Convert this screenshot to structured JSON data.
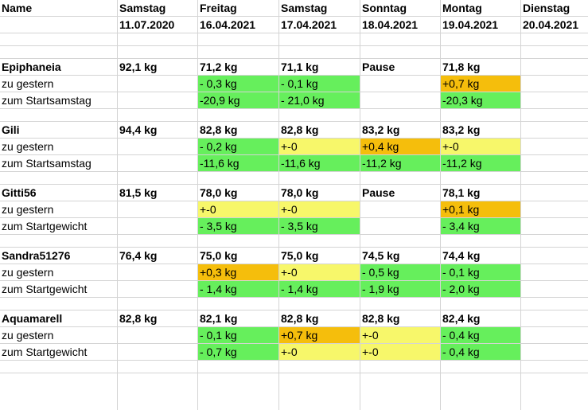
{
  "header": {
    "name_label": "Name",
    "days": [
      {
        "day": "Samstag",
        "date": "11.07.2020"
      },
      {
        "day": "Freitag",
        "date": "16.04.2021"
      },
      {
        "day": "Samstag",
        "date": "17.04.2021"
      },
      {
        "day": "Sonntag",
        "date": "18.04.2021"
      },
      {
        "day": "Montag",
        "date": "19.04.2021"
      },
      {
        "day": "Dienstag",
        "date": "20.04.2021"
      }
    ]
  },
  "people": [
    {
      "name": "Epiphaneia",
      "weights": [
        "92,1 kg",
        "71,2 kg",
        "71,1 kg",
        "Pause",
        "71,8 kg",
        ""
      ],
      "row2_label": "zu gestern",
      "row2": [
        {
          "v": "",
          "c": ""
        },
        {
          "v": "- 0,3 kg",
          "c": "green"
        },
        {
          "v": "- 0,1 kg",
          "c": "green"
        },
        {
          "v": "",
          "c": ""
        },
        {
          "v": "+0,7 kg",
          "c": "orange"
        },
        {
          "v": "",
          "c": ""
        }
      ],
      "row3_label": "zum Startsamstag",
      "row3": [
        {
          "v": "",
          "c": ""
        },
        {
          "v": "-20,9 kg",
          "c": "green"
        },
        {
          "v": "- 21,0 kg",
          "c": "green"
        },
        {
          "v": "",
          "c": ""
        },
        {
          "v": "-20,3 kg",
          "c": "green"
        },
        {
          "v": "",
          "c": ""
        }
      ]
    },
    {
      "name": "Gili",
      "weights": [
        "94,4 kg",
        "82,8 kg",
        "82,8 kg",
        "83,2 kg",
        "83,2 kg",
        ""
      ],
      "row2_label": "zu gestern",
      "row2": [
        {
          "v": "",
          "c": ""
        },
        {
          "v": "- 0,2 kg",
          "c": "green"
        },
        {
          "v": "+-0",
          "c": "yellow"
        },
        {
          "v": "+0,4 kg",
          "c": "orange"
        },
        {
          "v": "+-0",
          "c": "yellow"
        },
        {
          "v": "",
          "c": ""
        }
      ],
      "row3_label": "zum Startsamstag",
      "row3": [
        {
          "v": "",
          "c": ""
        },
        {
          "v": "-11,6 kg",
          "c": "green"
        },
        {
          "v": "-11,6 kg",
          "c": "green"
        },
        {
          "v": "-11,2 kg",
          "c": "green"
        },
        {
          "v": "-11,2 kg",
          "c": "green"
        },
        {
          "v": "",
          "c": ""
        }
      ]
    },
    {
      "name": "Gitti56",
      "weights": [
        "81,5 kg",
        "78,0 kg",
        "78,0 kg",
        "Pause",
        "78,1 kg",
        ""
      ],
      "row2_label": "zu gestern",
      "row2": [
        {
          "v": "",
          "c": ""
        },
        {
          "v": "+-0",
          "c": "yellow"
        },
        {
          "v": "+-0",
          "c": "yellow"
        },
        {
          "v": "",
          "c": ""
        },
        {
          "v": "+0,1 kg",
          "c": "orange"
        },
        {
          "v": "",
          "c": ""
        }
      ],
      "row3_label": "zum Startgewicht",
      "row3": [
        {
          "v": "",
          "c": ""
        },
        {
          "v": "- 3,5 kg",
          "c": "green"
        },
        {
          "v": "- 3,5 kg",
          "c": "green"
        },
        {
          "v": "",
          "c": ""
        },
        {
          "v": "- 3,4 kg",
          "c": "green"
        },
        {
          "v": "",
          "c": ""
        }
      ]
    },
    {
      "name": "Sandra51276",
      "weights": [
        "76,4 kg",
        "75,0 kg",
        "75,0 kg",
        "74,5 kg",
        "74,4 kg",
        ""
      ],
      "row2_label": "zu gestern",
      "row2": [
        {
          "v": "",
          "c": ""
        },
        {
          "v": "+0,3 kg",
          "c": "orange"
        },
        {
          "v": "+-0",
          "c": "yellow"
        },
        {
          "v": "- 0,5 kg",
          "c": "green"
        },
        {
          "v": "- 0,1 kg",
          "c": "green"
        },
        {
          "v": "",
          "c": ""
        }
      ],
      "row3_label": "zum Startgewicht",
      "row3": [
        {
          "v": "",
          "c": ""
        },
        {
          "v": "- 1,4 kg",
          "c": "green"
        },
        {
          "v": "- 1,4 kg",
          "c": "green"
        },
        {
          "v": "- 1,9 kg",
          "c": "green"
        },
        {
          "v": "- 2,0 kg",
          "c": "green"
        },
        {
          "v": "",
          "c": ""
        }
      ]
    },
    {
      "name": "Aquamarell",
      "weights": [
        "82,8 kg",
        "82,1 kg",
        "82,8 kg",
        "82,8 kg",
        "82,4 kg",
        ""
      ],
      "row2_label": "zu gestern",
      "row2": [
        {
          "v": "",
          "c": ""
        },
        {
          "v": "- 0,1 kg",
          "c": "green"
        },
        {
          "v": "+0,7 kg",
          "c": "orange"
        },
        {
          "v": "+-0",
          "c": "yellow"
        },
        {
          "v": "- 0,4 kg",
          "c": "green"
        },
        {
          "v": "",
          "c": ""
        }
      ],
      "row3_label": "zum Startgewicht",
      "row3": [
        {
          "v": "",
          "c": ""
        },
        {
          "v": "- 0,7 kg",
          "c": "green"
        },
        {
          "v": "+-0",
          "c": "yellow"
        },
        {
          "v": "+-0",
          "c": "yellow"
        },
        {
          "v": "- 0,4 kg",
          "c": "green"
        },
        {
          "v": "",
          "c": ""
        }
      ]
    }
  ],
  "colors": {
    "green": "#66ef5c",
    "yellow": "#f7f76a",
    "orange": "#f5be0c",
    "grid": "#d4d4d4"
  }
}
